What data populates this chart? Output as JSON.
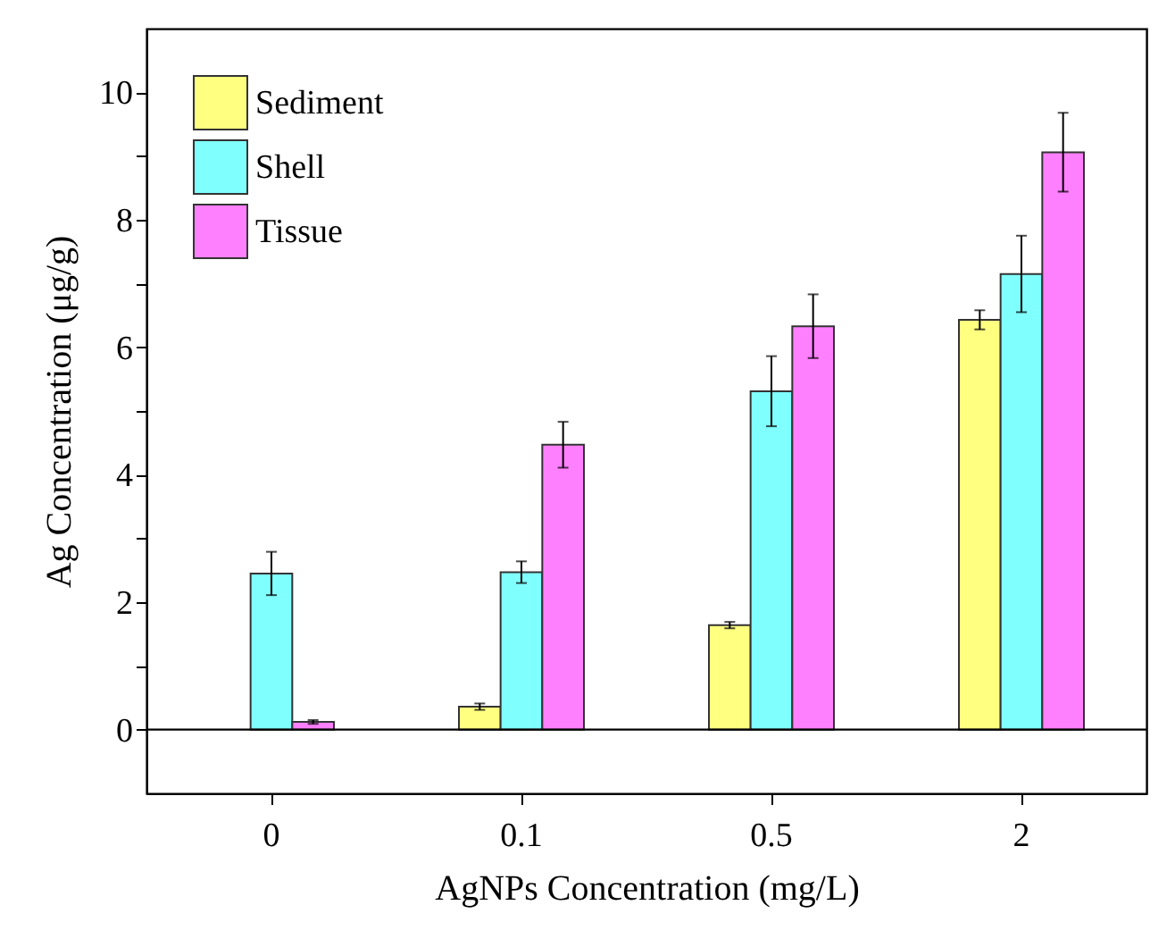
{
  "chart_data": {
    "type": "bar",
    "xlabel": "AgNPs Concentration (mg/L)",
    "ylabel": "Ag Concentration (μg/g)",
    "categories": [
      "0",
      "0.1",
      "0.5",
      "2"
    ],
    "series": [
      {
        "name": "Sediment",
        "color": "#ffff80",
        "values": [
          null,
          0.36,
          1.64,
          6.43
        ],
        "errors": [
          null,
          0.05,
          0.05,
          0.15
        ]
      },
      {
        "name": "Shell",
        "color": "#80ffff",
        "values": [
          2.45,
          2.47,
          5.31,
          7.15
        ],
        "errors": [
          0.34,
          0.17,
          0.55,
          0.6
        ]
      },
      {
        "name": "Tissue",
        "color": "#ff80ff",
        "values": [
          0.12,
          4.47,
          6.33,
          9.06
        ],
        "errors": [
          0.03,
          0.36,
          0.5,
          0.62
        ]
      }
    ],
    "ylim": [
      -1,
      11
    ],
    "yticks": [
      0,
      {
        "value": 1,
        "label": null
      },
      2,
      {
        "value": 3,
        "label": null
      },
      4,
      {
        "value": 5,
        "label": null
      },
      6,
      {
        "value": 7,
        "label": null
      },
      8,
      {
        "value": 9,
        "label": null
      },
      10
    ],
    "ref_lines": [
      {
        "axis": "y",
        "value": 0
      }
    ],
    "legend": "top left",
    "grid": false
  }
}
